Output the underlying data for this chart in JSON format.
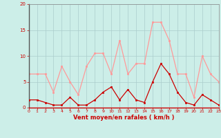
{
  "hours": [
    0,
    1,
    2,
    3,
    4,
    5,
    6,
    7,
    8,
    9,
    10,
    11,
    12,
    13,
    14,
    15,
    16,
    17,
    18,
    19,
    20,
    21,
    22,
    23
  ],
  "wind_avg": [
    1.5,
    1.5,
    1.0,
    0.5,
    0.5,
    2.0,
    0.5,
    0.5,
    1.5,
    3.0,
    4.0,
    1.5,
    3.5,
    1.5,
    1.0,
    5.0,
    8.5,
    6.5,
    3.0,
    1.0,
    0.5,
    2.5,
    1.5,
    0.5
  ],
  "wind_gust": [
    6.5,
    6.5,
    6.5,
    3.0,
    8.0,
    5.0,
    2.5,
    8.0,
    10.5,
    10.5,
    6.5,
    13.0,
    6.5,
    8.5,
    8.5,
    16.5,
    16.5,
    13.0,
    6.5,
    6.5,
    2.0,
    10.0,
    6.5,
    5.0
  ],
  "xlim": [
    0,
    23
  ],
  "ylim": [
    0,
    20
  ],
  "yticks": [
    0,
    5,
    10,
    15,
    20
  ],
  "xticks": [
    0,
    1,
    2,
    3,
    4,
    5,
    6,
    7,
    8,
    9,
    10,
    11,
    12,
    13,
    14,
    15,
    16,
    17,
    18,
    19,
    20,
    21,
    22,
    23
  ],
  "xlabel": "Vent moyen/en rafales ( km/h )",
  "bg_color": "#cceee8",
  "grid_color": "#aacccc",
  "line_avg_color": "#cc0000",
  "line_gust_color": "#ff9999",
  "xlabel_color": "#cc0000",
  "tick_color": "#cc0000",
  "spine_color": "#888888",
  "left_spine_color": "#555555",
  "bottom_spine_color": "#cc0000"
}
